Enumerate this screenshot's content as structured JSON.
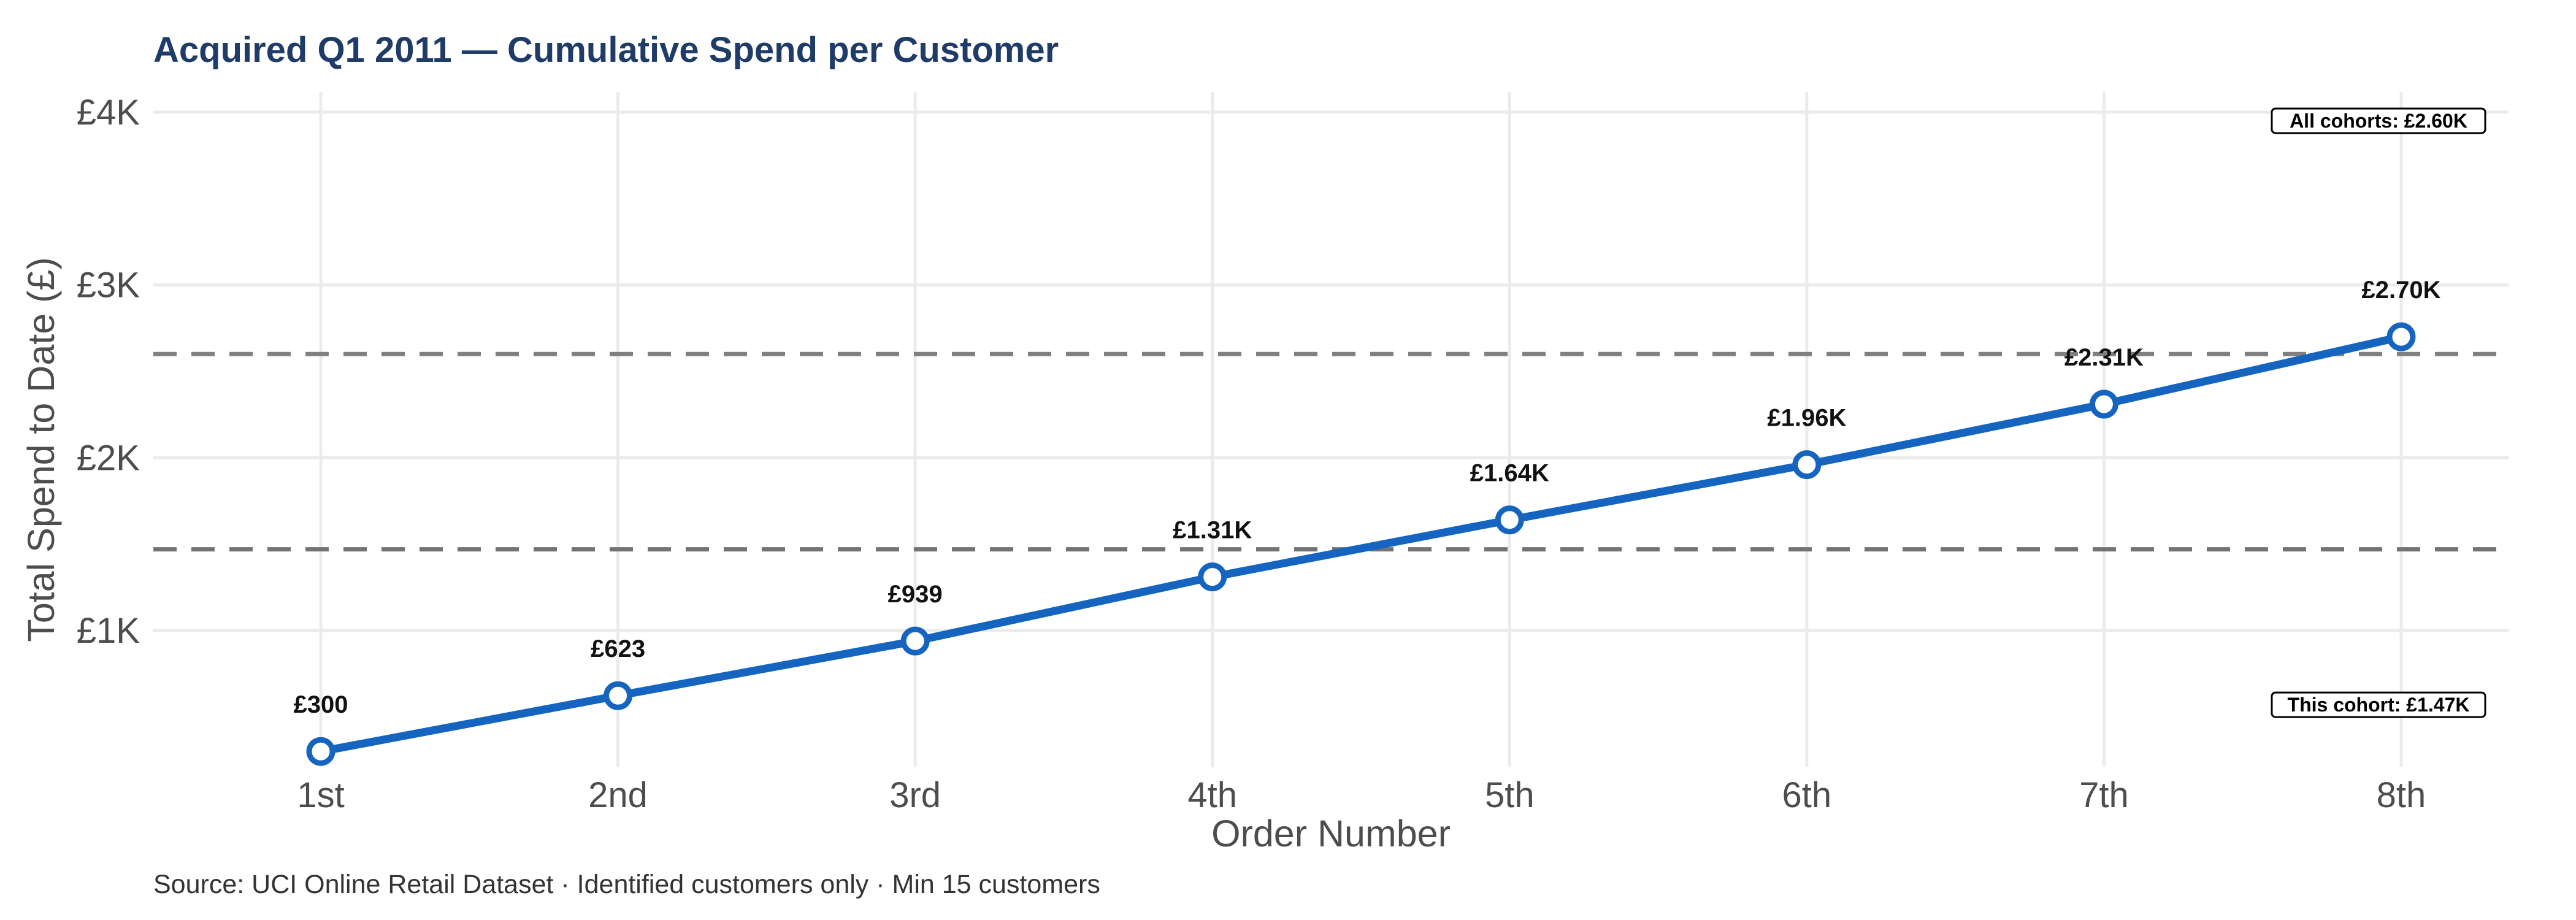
{
  "chart_data": {
    "type": "line",
    "title": "Acquired Q1 2011 — Cumulative Spend per Customer",
    "caption": "Source: UCI Online Retail Dataset · Identified customers only · Min 15 customers",
    "xlabel": "Order Number",
    "ylabel": "Total Spend to Date (£)",
    "categories": [
      "1st",
      "2nd",
      "3rd",
      "4th",
      "5th",
      "6th",
      "7th",
      "8th"
    ],
    "series": [
      {
        "values": [
          300,
          623,
          939,
          1310,
          1640,
          1960,
          2310,
          2700
        ],
        "labels": [
          "£300",
          "£623",
          "£939",
          "£1.31K",
          "£1.64K",
          "£1.96K",
          "£2.31K",
          "£2.70K"
        ],
        "color": "#1565c0"
      }
    ],
    "y_ticks": [
      {
        "value": 1000,
        "label": "£1K"
      },
      {
        "value": 2000,
        "label": "£2K"
      },
      {
        "value": 3000,
        "label": "£3K"
      },
      {
        "value": 4000,
        "label": "£4K"
      }
    ],
    "ylim": [
      120,
      4100
    ],
    "grid": true,
    "reference_lines": [
      {
        "value": 2600,
        "label": "All cohorts: £2.60K",
        "color": "#808080",
        "style": "dashed"
      },
      {
        "value": 1470,
        "label": "This cohort: £1.47K",
        "color": "#737373",
        "style": "dashed"
      }
    ]
  }
}
